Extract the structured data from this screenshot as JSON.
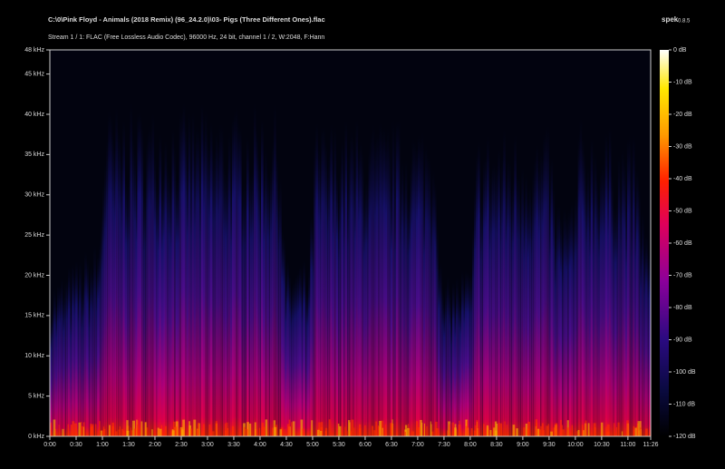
{
  "chart_data": {
    "type": "spectrogram",
    "title": "C:\\0\\Pink Floyd - Animals (2018 Remix) (96_24.2.0)\\03- Pigs (Three Different Ones).flac",
    "subtitle": "Stream 1 / 1: FLAC (Free Lossless Audio Codec), 96000 Hz, 24 bit, channel 1 / 2, W:2048, F:Hann",
    "app_name": "spek",
    "app_version": "0.8.5",
    "xlim": [
      0,
      686
    ],
    "xticks": [
      {
        "value": 0,
        "label": "0:00"
      },
      {
        "value": 30,
        "label": "0:30"
      },
      {
        "value": 60,
        "label": "1:00"
      },
      {
        "value": 90,
        "label": "1:30"
      },
      {
        "value": 120,
        "label": "2:00"
      },
      {
        "value": 150,
        "label": "2:30"
      },
      {
        "value": 180,
        "label": "3:00"
      },
      {
        "value": 210,
        "label": "3:30"
      },
      {
        "value": 240,
        "label": "4:00"
      },
      {
        "value": 270,
        "label": "4:30"
      },
      {
        "value": 300,
        "label": "5:00"
      },
      {
        "value": 330,
        "label": "5:30"
      },
      {
        "value": 360,
        "label": "6:00"
      },
      {
        "value": 390,
        "label": "6:30"
      },
      {
        "value": 420,
        "label": "7:00"
      },
      {
        "value": 450,
        "label": "7:30"
      },
      {
        "value": 480,
        "label": "8:00"
      },
      {
        "value": 510,
        "label": "8:30"
      },
      {
        "value": 540,
        "label": "9:00"
      },
      {
        "value": 570,
        "label": "9:30"
      },
      {
        "value": 600,
        "label": "10:00"
      },
      {
        "value": 630,
        "label": "10:30"
      },
      {
        "value": 660,
        "label": "11:00"
      },
      {
        "value": 686,
        "label": "11:26"
      }
    ],
    "ylim": [
      0,
      48
    ],
    "yticks": [
      {
        "value": 0,
        "label": "0 kHz"
      },
      {
        "value": 5,
        "label": "5 kHz"
      },
      {
        "value": 10,
        "label": "10 kHz"
      },
      {
        "value": 15,
        "label": "15 kHz"
      },
      {
        "value": 20,
        "label": "20 kHz"
      },
      {
        "value": 25,
        "label": "25 kHz"
      },
      {
        "value": 30,
        "label": "30 kHz"
      },
      {
        "value": 35,
        "label": "35 kHz"
      },
      {
        "value": 40,
        "label": "40 kHz"
      },
      {
        "value": 45,
        "label": "45 kHz"
      },
      {
        "value": 48,
        "label": "48 kHz"
      }
    ],
    "zlim": [
      -120,
      0
    ],
    "zticks": [
      {
        "value": 0,
        "label": "0 dB"
      },
      {
        "value": -10,
        "label": "-10 dB"
      },
      {
        "value": -20,
        "label": "-20 dB"
      },
      {
        "value": -30,
        "label": "-30 dB"
      },
      {
        "value": -40,
        "label": "-40 dB"
      },
      {
        "value": -50,
        "label": "-50 dB"
      },
      {
        "value": -60,
        "label": "-60 dB"
      },
      {
        "value": -70,
        "label": "-70 dB"
      },
      {
        "value": -80,
        "label": "-80 dB"
      },
      {
        "value": -90,
        "label": "-90 dB"
      },
      {
        "value": -100,
        "label": "-100 dB"
      },
      {
        "value": -110,
        "label": "-110 dB"
      },
      {
        "value": -120,
        "label": "-120 dB"
      }
    ]
  }
}
